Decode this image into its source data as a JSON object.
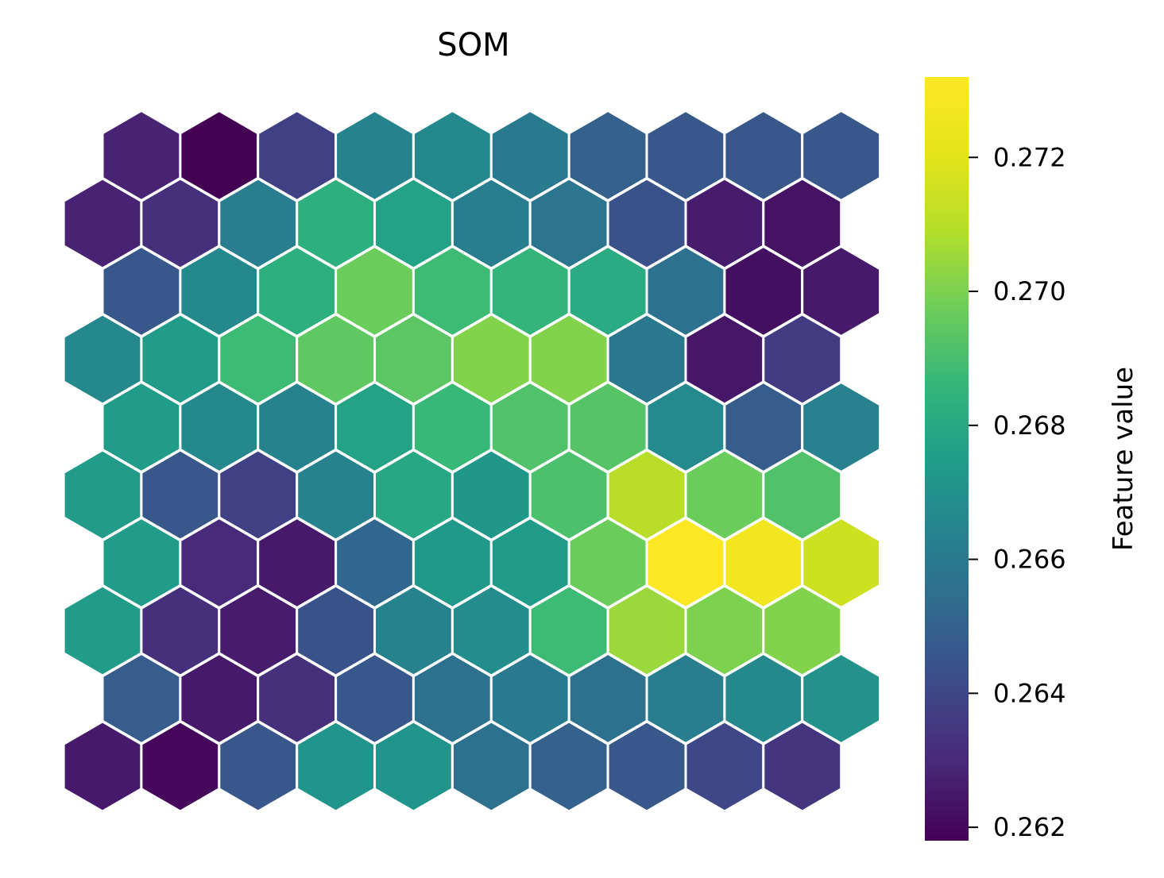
{
  "chart_data": {
    "type": "heatmap",
    "layout": "hexagonal",
    "title": "SOM",
    "colormap": "viridis",
    "colorbar": {
      "label": "Feature value",
      "range": [
        0.2618,
        0.2732
      ],
      "ticks": [
        "0.262",
        "0.264",
        "0.266",
        "0.268",
        "0.270",
        "0.272"
      ]
    },
    "grid_rows_top_to_bottom": [
      [
        0.2628,
        0.2618,
        0.2638,
        0.2664,
        0.2666,
        0.266,
        0.265,
        0.2646,
        0.2646,
        0.2646
      ],
      [
        0.2628,
        0.2632,
        0.2662,
        0.2683,
        0.2677,
        0.2662,
        0.2658,
        0.2644,
        0.2626,
        0.2623
      ],
      [
        0.2646,
        0.2666,
        0.2683,
        0.2697,
        0.2688,
        0.2685,
        0.2681,
        0.2656,
        0.2622,
        0.2625
      ],
      [
        0.2666,
        0.2674,
        0.2688,
        0.2695,
        0.2694,
        0.2701,
        0.2701,
        0.2659,
        0.2624,
        0.2636
      ],
      [
        0.2674,
        0.2666,
        0.2664,
        0.2677,
        0.2687,
        0.2692,
        0.2693,
        0.2667,
        0.2648,
        0.2663
      ],
      [
        0.2674,
        0.2646,
        0.2638,
        0.2664,
        0.2679,
        0.2672,
        0.2691,
        0.271,
        0.2697,
        0.2692
      ],
      [
        0.2674,
        0.263,
        0.2625,
        0.2652,
        0.2673,
        0.2674,
        0.2697,
        0.2731,
        0.2727,
        0.2715
      ],
      [
        0.2674,
        0.2632,
        0.2626,
        0.2644,
        0.2664,
        0.2668,
        0.2688,
        0.2705,
        0.27,
        0.2701
      ],
      [
        0.2648,
        0.2625,
        0.2632,
        0.2646,
        0.2656,
        0.266,
        0.2656,
        0.2662,
        0.2666,
        0.267
      ],
      [
        0.2625,
        0.262,
        0.2646,
        0.2671,
        0.2671,
        0.2656,
        0.265,
        0.2646,
        0.264,
        0.2634
      ]
    ]
  }
}
